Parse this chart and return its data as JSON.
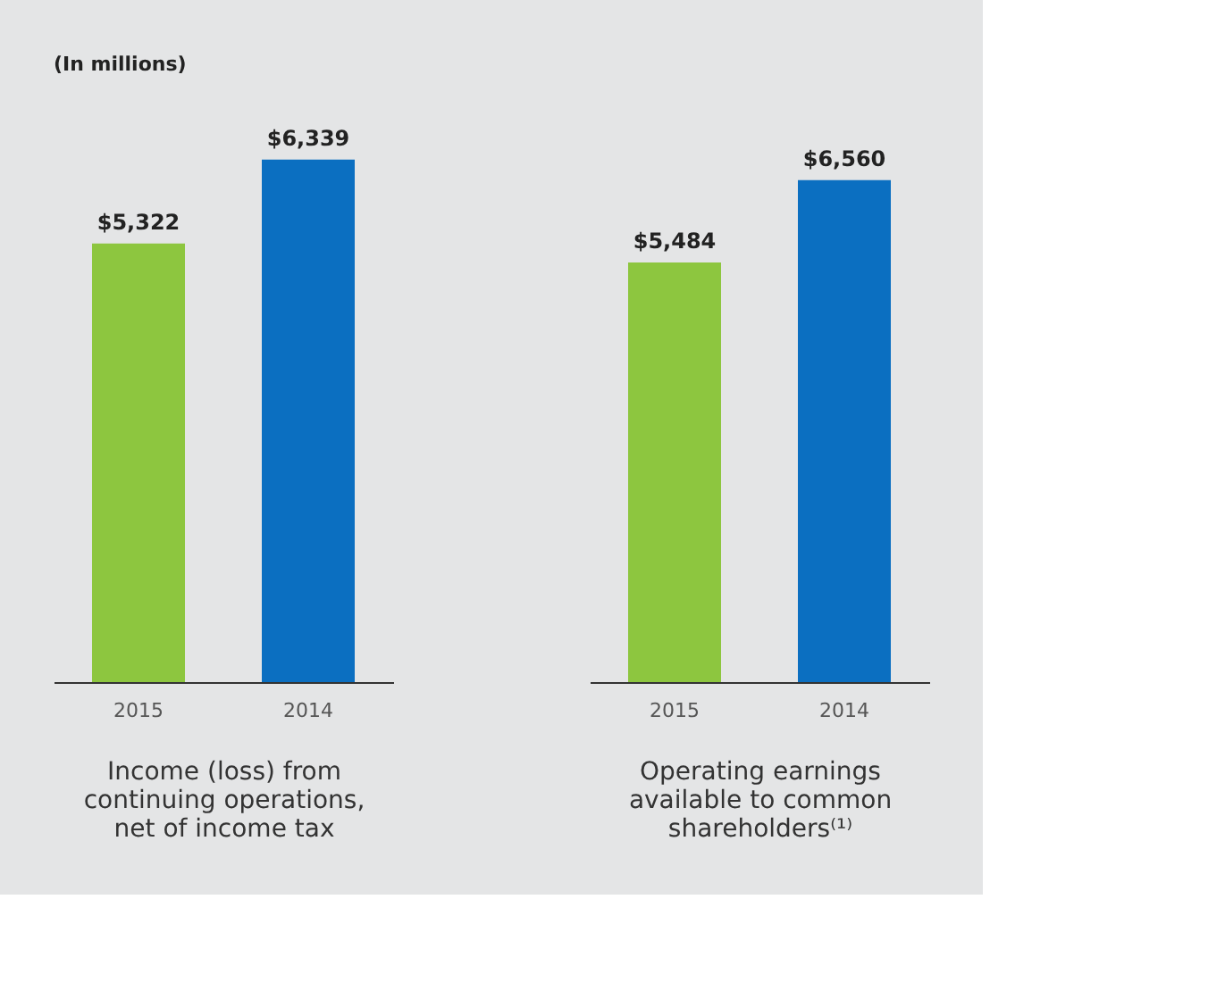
{
  "chart_data": [
    {
      "type": "bar",
      "title": "(In millions)",
      "categories": [
        "2015",
        "2014"
      ],
      "values": [
        5322,
        6339
      ],
      "colors": [
        "#8dc63f",
        "#0b6fc1"
      ],
      "value_labels": [
        "$5,322",
        "$6,339"
      ],
      "xlabel": "Income (loss) from continuing operations, net of income tax",
      "tick_labels": "x",
      "grid": false
    },
    {
      "type": "bar",
      "categories": [
        "2015",
        "2014"
      ],
      "values": [
        5484,
        6560
      ],
      "colors": [
        "#8dc63f",
        "#0b6fc1"
      ],
      "value_labels": [
        "$5,484",
        "$6,560"
      ],
      "xlabel": "Operating earnings available to common shareholders⁽¹⁾",
      "tick_labels": "x",
      "grid": false
    }
  ]
}
